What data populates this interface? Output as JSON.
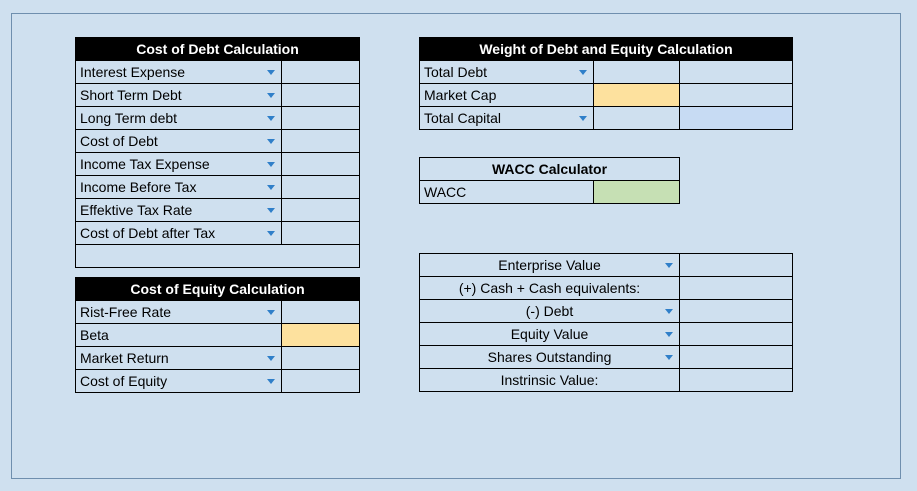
{
  "cost_of_debt": {
    "title": "Cost of Debt Calculation",
    "rows": [
      {
        "label": "Interest Expense",
        "value": ""
      },
      {
        "label": "Short Term Debt",
        "value": ""
      },
      {
        "label": "Long Term debt",
        "value": ""
      },
      {
        "label": "Cost of Debt",
        "value": ""
      },
      {
        "label": "Income Tax Expense",
        "value": ""
      },
      {
        "label": "Income Before Tax",
        "value": ""
      },
      {
        "label": "Effektive Tax Rate",
        "value": ""
      },
      {
        "label": "Cost of Debt after Tax",
        "value": ""
      }
    ]
  },
  "cost_of_equity": {
    "title": "Cost of Equity Calculation",
    "rows": [
      {
        "label": "Rist-Free Rate",
        "value": ""
      },
      {
        "label": "Beta",
        "value": ""
      },
      {
        "label": "Market Return",
        "value": ""
      },
      {
        "label": "Cost of Equity",
        "value": ""
      }
    ]
  },
  "weights": {
    "title": "Weight of Debt and Equity Calculation",
    "rows": [
      {
        "label": "Total Debt",
        "value": "",
        "weight": ""
      },
      {
        "label": "Market Cap",
        "value": "",
        "weight": ""
      },
      {
        "label": "Total Capital",
        "value": "",
        "weight": ""
      }
    ]
  },
  "wacc": {
    "title": "WACC Calculator",
    "label": "WACC",
    "value": ""
  },
  "valuation": {
    "rows": [
      {
        "label": "Enterprise Value",
        "value": ""
      },
      {
        "label": "(+) Cash + Cash equivalents:",
        "value": ""
      },
      {
        "label": "(-) Debt",
        "value": ""
      },
      {
        "label": "Equity Value",
        "value": ""
      },
      {
        "label": "Shares Outstanding",
        "value": ""
      },
      {
        "label": "Instrinsic Value:",
        "value": ""
      }
    ]
  },
  "colors": {
    "background": "#cfe0ef",
    "input_yellow": "#fde19e",
    "output_blue": "#c7dbf3",
    "result_green": "#c6e0b4",
    "dropdown_arrow": "#2f7fc9"
  }
}
